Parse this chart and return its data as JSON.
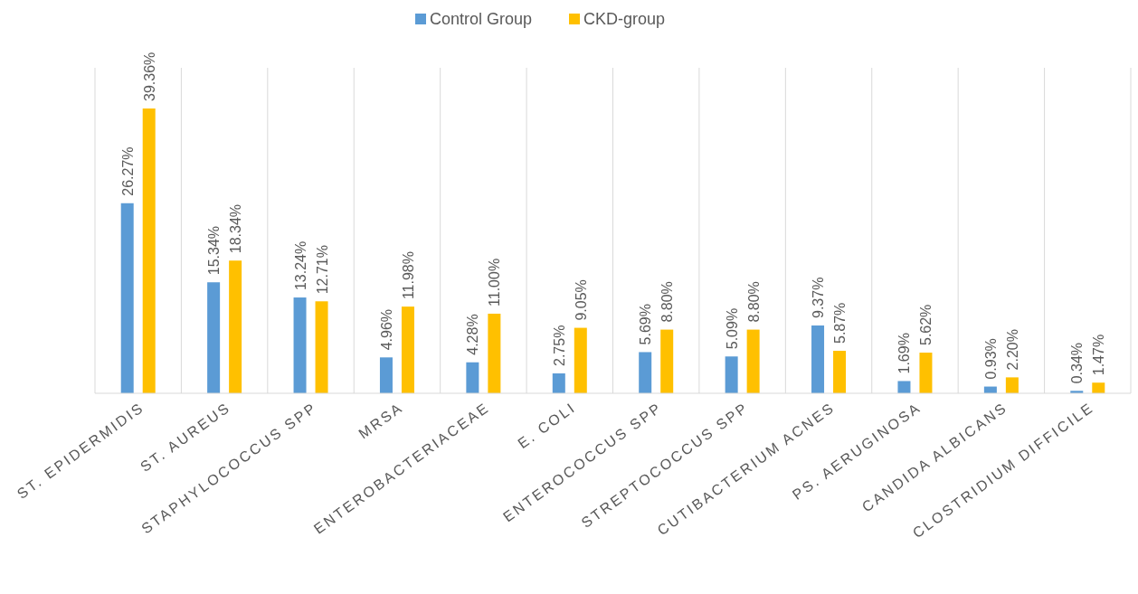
{
  "chart_data": {
    "type": "bar",
    "categories": [
      "ST. EPIDERMIDIS",
      "ST. AUREUS",
      "STAPHYLOCOCCUS SPP",
      "MRSA",
      "ENTEROBACTERIACEAE",
      "E. COLI",
      "ENTEROCOCCUS SPP",
      "STREPTOCOCCUS SPP",
      "CUTIBACTERIUM ACNES",
      "PS. AERUGINOSA",
      "CANDIDA ALBICANS",
      "CLOSTRIDIUM DIFFICILE"
    ],
    "series": [
      {
        "name": "Control Group",
        "color": "#5b9bd5",
        "values": [
          26.27,
          15.34,
          13.24,
          4.96,
          4.28,
          2.75,
          5.69,
          5.09,
          9.37,
          1.69,
          0.93,
          0.34
        ],
        "value_labels": [
          "26.27%",
          "15.34%",
          "13.24%",
          "4.96%",
          "4.28%",
          "2.75%",
          "5.69%",
          "5.09%",
          "9.37%",
          "1.69%",
          "0.93%",
          "0.34%"
        ]
      },
      {
        "name": "CKD-group",
        "color": "#ffc000",
        "values": [
          39.36,
          18.34,
          12.71,
          11.98,
          11.0,
          9.05,
          8.8,
          8.8,
          5.87,
          5.62,
          2.2,
          1.47
        ],
        "value_labels": [
          "39.36%",
          "18.34%",
          "12.71%",
          "11.98%",
          "11.00%",
          "9.05%",
          "8.80%",
          "8.80%",
          "5.87%",
          "5.62%",
          "2.20%",
          "1.47%"
        ]
      }
    ],
    "grid": "x",
    "legend": "top"
  }
}
